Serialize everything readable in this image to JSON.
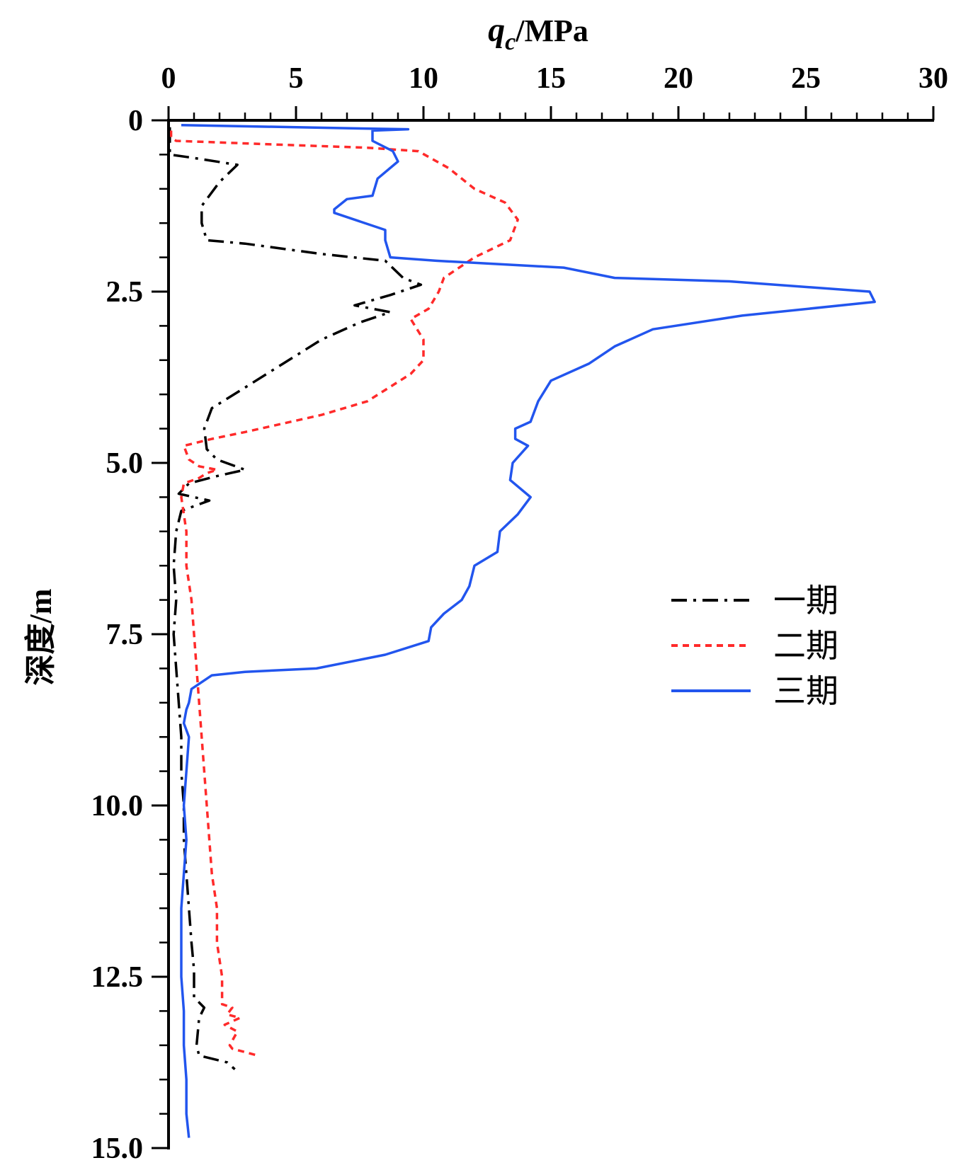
{
  "chart_data": {
    "type": "line",
    "orientation": "depth-profile",
    "xlabel": {
      "symbol": "q",
      "subscript": "c",
      "unit": "/MPa"
    },
    "ylabel": "深度/m",
    "xlim": [
      0,
      30
    ],
    "ylim": [
      0,
      15
    ],
    "x_ticks": [
      "0",
      "5",
      "10",
      "15",
      "20",
      "25",
      "30"
    ],
    "y_ticks": [
      "0",
      "2.5",
      "5.0",
      "7.5",
      "10.0",
      "12.5",
      "15.0"
    ],
    "x_axis_position": "top",
    "y_axis_direction": "downward",
    "grid": false,
    "legend_position": "right-middle",
    "series": [
      {
        "name": "一期",
        "color": "#000000",
        "style": "dash-dot",
        "points": [
          [
            0.05,
            0.1
          ],
          [
            0.05,
            0.5
          ],
          [
            1.0,
            0.55
          ],
          [
            2.7,
            0.65
          ],
          [
            2.0,
            0.9
          ],
          [
            1.6,
            1.1
          ],
          [
            1.3,
            1.25
          ],
          [
            1.3,
            1.5
          ],
          [
            1.5,
            1.75
          ],
          [
            3.0,
            1.8
          ],
          [
            6.0,
            1.95
          ],
          [
            8.5,
            2.05
          ],
          [
            9.2,
            2.3
          ],
          [
            9.9,
            2.4
          ],
          [
            8.7,
            2.55
          ],
          [
            7.3,
            2.7
          ],
          [
            8.7,
            2.8
          ],
          [
            7.5,
            2.95
          ],
          [
            6.0,
            3.2
          ],
          [
            4.5,
            3.55
          ],
          [
            3.0,
            3.9
          ],
          [
            1.7,
            4.2
          ],
          [
            1.4,
            4.5
          ],
          [
            1.5,
            4.8
          ],
          [
            1.9,
            4.95
          ],
          [
            3.0,
            5.1
          ],
          [
            1.8,
            5.2
          ],
          [
            0.8,
            5.3
          ],
          [
            0.4,
            5.45
          ],
          [
            1.6,
            5.55
          ],
          [
            0.5,
            5.7
          ],
          [
            0.3,
            6.0
          ],
          [
            0.2,
            6.5
          ],
          [
            0.3,
            7.0
          ],
          [
            0.2,
            7.5
          ],
          [
            0.3,
            8.0
          ],
          [
            0.4,
            8.5
          ],
          [
            0.5,
            9.0
          ],
          [
            0.5,
            9.5
          ],
          [
            0.6,
            10.0
          ],
          [
            0.6,
            10.5
          ],
          [
            0.7,
            11.0
          ],
          [
            0.8,
            11.5
          ],
          [
            0.9,
            12.0
          ],
          [
            1.0,
            12.4
          ],
          [
            1.0,
            12.8
          ],
          [
            1.4,
            12.95
          ],
          [
            1.2,
            13.1
          ],
          [
            1.1,
            13.5
          ],
          [
            1.2,
            13.65
          ],
          [
            2.3,
            13.75
          ],
          [
            2.6,
            13.85
          ]
        ]
      },
      {
        "name": "二期",
        "color": "#ff2a2a",
        "style": "dashed",
        "points": [
          [
            0.1,
            0.15
          ],
          [
            0.1,
            0.25
          ],
          [
            0.3,
            0.3
          ],
          [
            4.0,
            0.35
          ],
          [
            7.8,
            0.4
          ],
          [
            9.8,
            0.45
          ],
          [
            11.0,
            0.7
          ],
          [
            12.0,
            1.0
          ],
          [
            13.2,
            1.2
          ],
          [
            13.7,
            1.45
          ],
          [
            13.4,
            1.75
          ],
          [
            12.0,
            2.0
          ],
          [
            10.8,
            2.3
          ],
          [
            10.6,
            2.5
          ],
          [
            10.2,
            2.75
          ],
          [
            9.5,
            2.9
          ],
          [
            10.0,
            3.2
          ],
          [
            10.0,
            3.5
          ],
          [
            9.5,
            3.7
          ],
          [
            7.8,
            4.1
          ],
          [
            6.0,
            4.3
          ],
          [
            3.0,
            4.55
          ],
          [
            1.7,
            4.65
          ],
          [
            0.6,
            4.75
          ],
          [
            0.8,
            4.95
          ],
          [
            1.2,
            5.05
          ],
          [
            1.9,
            5.1
          ],
          [
            1.5,
            5.15
          ],
          [
            1.2,
            5.22
          ],
          [
            0.6,
            5.3
          ],
          [
            0.5,
            5.5
          ],
          [
            0.7,
            6.0
          ],
          [
            0.7,
            6.5
          ],
          [
            0.9,
            7.0
          ],
          [
            1.0,
            7.5
          ],
          [
            1.1,
            8.0
          ],
          [
            1.2,
            8.5
          ],
          [
            1.3,
            9.0
          ],
          [
            1.4,
            9.5
          ],
          [
            1.5,
            10.0
          ],
          [
            1.6,
            10.5
          ],
          [
            1.7,
            11.0
          ],
          [
            1.9,
            11.5
          ],
          [
            1.9,
            12.0
          ],
          [
            2.1,
            12.5
          ],
          [
            2.1,
            12.9
          ],
          [
            2.5,
            12.95
          ],
          [
            2.3,
            13.05
          ],
          [
            2.8,
            13.1
          ],
          [
            2.2,
            13.2
          ],
          [
            2.7,
            13.3
          ],
          [
            2.4,
            13.5
          ],
          [
            2.5,
            13.55
          ],
          [
            3.5,
            13.65
          ]
        ]
      },
      {
        "name": "三期",
        "color": "#2255ee",
        "style": "solid",
        "points": [
          [
            0.5,
            0.07
          ],
          [
            2.0,
            0.08
          ],
          [
            7.7,
            0.12
          ],
          [
            9.4,
            0.13
          ],
          [
            8.0,
            0.15
          ],
          [
            8.0,
            0.3
          ],
          [
            8.8,
            0.45
          ],
          [
            9.0,
            0.6
          ],
          [
            8.2,
            0.85
          ],
          [
            8.0,
            1.1
          ],
          [
            7.0,
            1.15
          ],
          [
            6.5,
            1.3
          ],
          [
            6.5,
            1.35
          ],
          [
            8.5,
            1.6
          ],
          [
            8.5,
            1.75
          ],
          [
            8.7,
            2.0
          ],
          [
            10.5,
            2.05
          ],
          [
            13.0,
            2.1
          ],
          [
            15.5,
            2.15
          ],
          [
            17.5,
            2.3
          ],
          [
            22.0,
            2.35
          ],
          [
            27.5,
            2.5
          ],
          [
            27.7,
            2.65
          ],
          [
            22.5,
            2.85
          ],
          [
            19.0,
            3.05
          ],
          [
            17.5,
            3.3
          ],
          [
            16.5,
            3.55
          ],
          [
            15.0,
            3.8
          ],
          [
            14.5,
            4.1
          ],
          [
            14.2,
            4.4
          ],
          [
            13.6,
            4.5
          ],
          [
            13.6,
            4.65
          ],
          [
            14.1,
            4.75
          ],
          [
            13.5,
            5.0
          ],
          [
            13.4,
            5.25
          ],
          [
            14.2,
            5.5
          ],
          [
            13.7,
            5.75
          ],
          [
            13.0,
            6.0
          ],
          [
            12.9,
            6.3
          ],
          [
            12.0,
            6.5
          ],
          [
            11.8,
            6.8
          ],
          [
            11.5,
            7.0
          ],
          [
            10.8,
            7.2
          ],
          [
            10.3,
            7.4
          ],
          [
            10.2,
            7.6
          ],
          [
            8.5,
            7.8
          ],
          [
            5.8,
            8.0
          ],
          [
            3.0,
            8.05
          ],
          [
            1.7,
            8.1
          ],
          [
            0.9,
            8.3
          ],
          [
            0.8,
            8.5
          ],
          [
            0.7,
            8.6
          ],
          [
            0.6,
            8.8
          ],
          [
            0.8,
            9.0
          ],
          [
            0.7,
            9.5
          ],
          [
            0.6,
            10.0
          ],
          [
            0.7,
            10.5
          ],
          [
            0.6,
            11.0
          ],
          [
            0.5,
            11.5
          ],
          [
            0.5,
            12.0
          ],
          [
            0.5,
            12.5
          ],
          [
            0.6,
            13.0
          ],
          [
            0.6,
            13.5
          ],
          [
            0.7,
            14.0
          ],
          [
            0.7,
            14.5
          ],
          [
            0.8,
            14.85
          ]
        ]
      }
    ]
  }
}
